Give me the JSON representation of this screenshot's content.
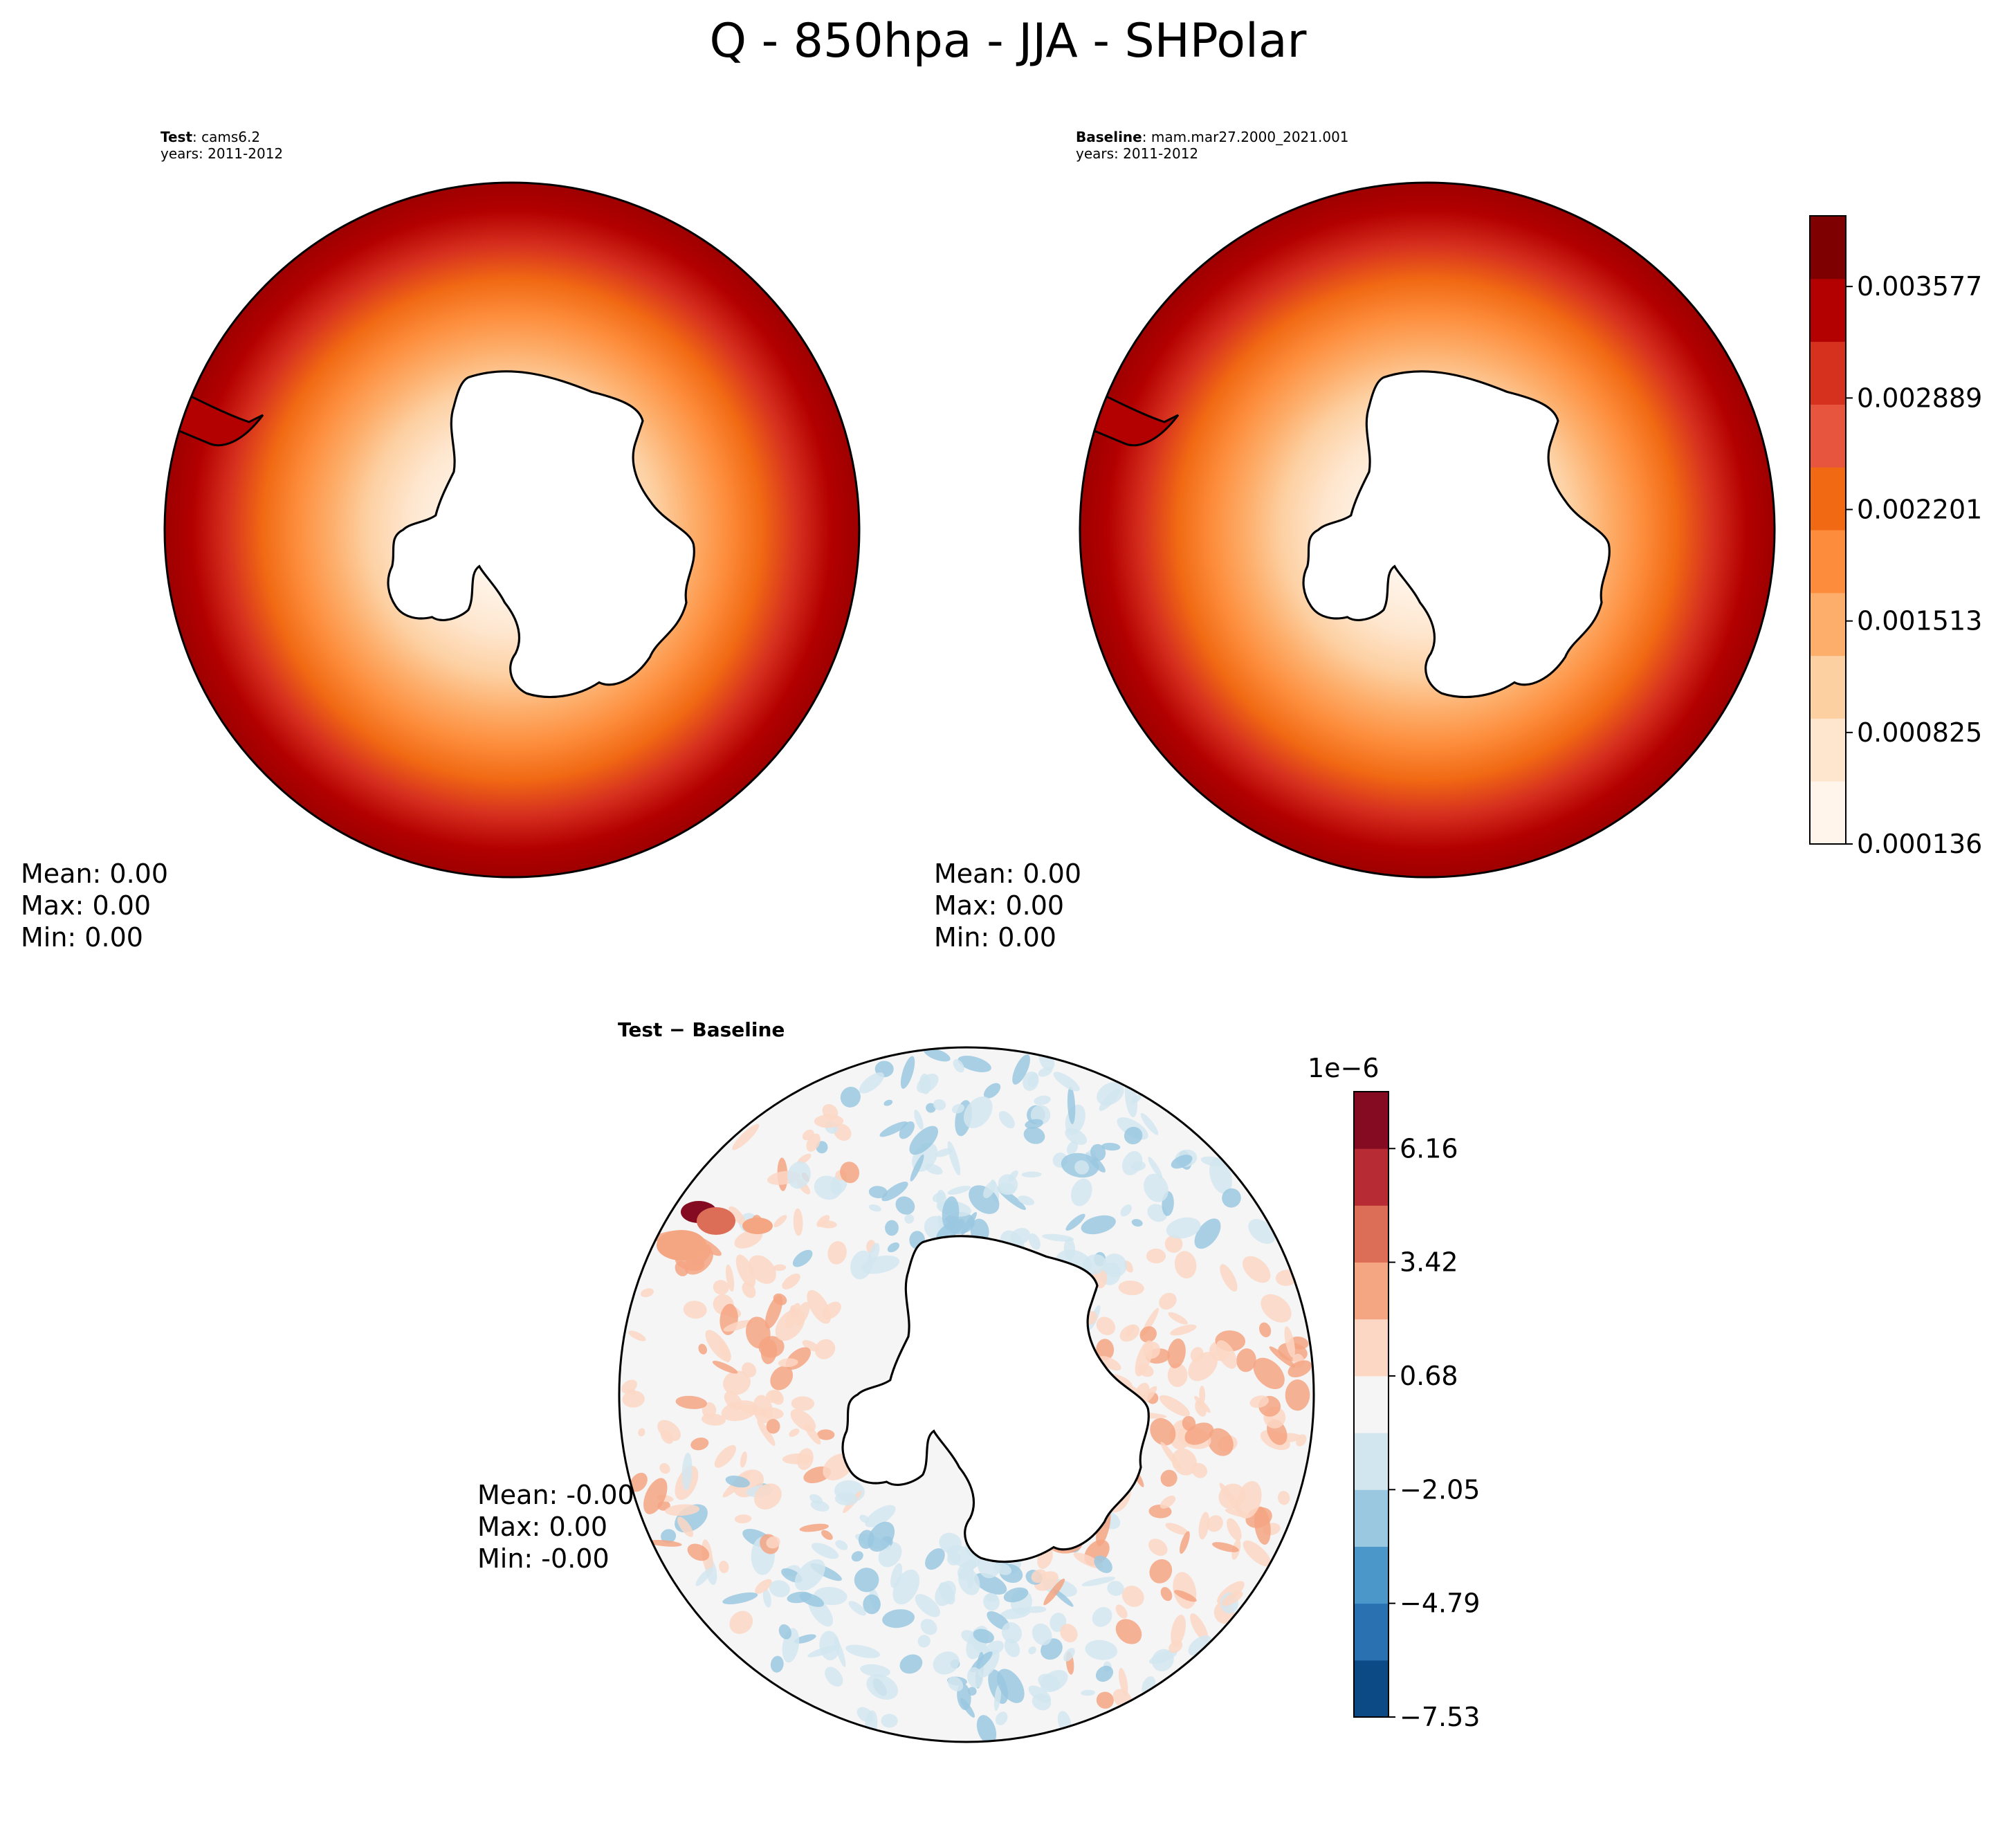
{
  "title": "Q - 850hpa - JJA - SHPolar",
  "panels": {
    "test": {
      "label": "Test",
      "case": "cams6.2",
      "years": "years: 2011-2012",
      "stats": {
        "mean": "Mean:  0.00",
        "max": "Max:  0.00",
        "min": "Min:  0.00"
      }
    },
    "baseline": {
      "label": "Baseline",
      "case": "mam.mar27.2000_2021.001",
      "years": "years: 2011-2012",
      "stats": {
        "mean": "Mean:  0.00",
        "max": "Max:  0.00",
        "min": "Min:  0.00"
      }
    },
    "diff": {
      "title": "Test − Baseline",
      "stats": {
        "mean": "Mean: -0.00",
        "max": "Max:  0.00",
        "min": "Min: -0.00"
      }
    }
  },
  "colorbars": {
    "abs": {
      "ticks": [
        "0.000136",
        "0.000825",
        "0.001513",
        "0.002201",
        "0.002889",
        "0.003577"
      ],
      "colors": [
        "#fff5eb",
        "#fee6ce",
        "#fdd0a2",
        "#fdae6b",
        "#fd8d3c",
        "#f16913",
        "#e8553f",
        "#d6301f",
        "#b30000",
        "#7f0000"
      ]
    },
    "diff": {
      "multiplier": "1e−6",
      "ticks": [
        "−7.53",
        "−4.79",
        "−2.05",
        "0.68",
        "3.42",
        "6.16"
      ],
      "colors": [
        "#0b4a85",
        "#2a71b2",
        "#4b97c9",
        "#9ac8e0",
        "#d2e6f0",
        "#f5f5f5",
        "#fcd7c4",
        "#f4a582",
        "#dc6e57",
        "#b62b34",
        "#850b23"
      ]
    }
  },
  "chart_data": [
    {
      "type": "heatmap",
      "title": "Test: cams6.2",
      "projection": "South polar stereographic",
      "field": "Q",
      "level": "850hpa",
      "season": "JJA",
      "region": "SHPolar",
      "colorbar_range": [
        0.000136,
        0.003577
      ],
      "colorbar_ticks": [
        0.000136,
        0.000825,
        0.001513,
        0.002201,
        0.002889,
        0.003577
      ],
      "pattern": "moisture increases radially from Antarctica (lowest) toward the mid-latitude edge (highest)",
      "stats": {
        "mean": 0.0,
        "max": 0.0,
        "min": 0.0
      }
    },
    {
      "type": "heatmap",
      "title": "Baseline: mam.mar27.2000_2021.001",
      "projection": "South polar stereographic",
      "colorbar_range": [
        0.000136,
        0.003577
      ],
      "colorbar_ticks": [
        0.000136,
        0.000825,
        0.001513,
        0.002201,
        0.002889,
        0.003577
      ],
      "stats": {
        "mean": 0.0,
        "max": 0.0,
        "min": 0.0
      }
    },
    {
      "type": "heatmap",
      "title": "Test − Baseline",
      "projection": "South polar stereographic",
      "colorbar_multiplier": "1e-6",
      "colorbar_range": [
        -7.53,
        6.16
      ],
      "colorbar_ticks": [
        -7.53,
        -4.79,
        -2.05,
        0.68,
        3.42,
        6.16
      ],
      "pattern": "mostly near-zero differences with scattered small positive and negative patches; strongest positive anomaly near the upper-left edge",
      "stats": {
        "mean": -0.0,
        "max": 0.0,
        "min": -0.0
      }
    }
  ]
}
